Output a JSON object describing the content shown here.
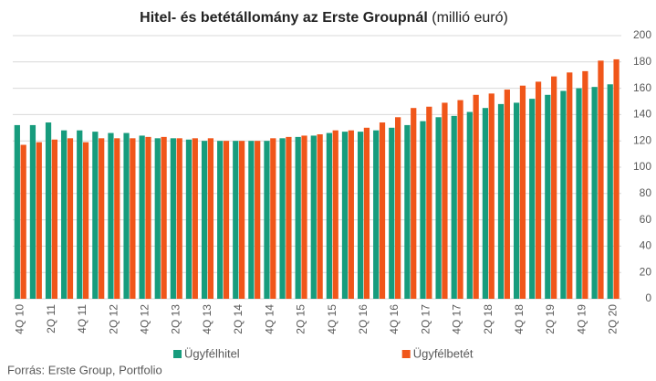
{
  "chart_data": {
    "type": "bar",
    "title": "Hitel- és betétállomány az Erste Groupnál",
    "title_unit": "(millió euró)",
    "source": "Forrás: Erste Group, Portfolio",
    "categories": [
      "4Q 10",
      null,
      "2Q 11",
      null,
      "4Q 11",
      null,
      "2Q 12",
      null,
      "4Q 12",
      null,
      "2Q 13",
      null,
      "4Q 13",
      null,
      "2Q 14",
      null,
      "4Q 14",
      null,
      "2Q 15",
      null,
      "4Q 15",
      null,
      "2Q 16",
      null,
      "4Q 16",
      null,
      "2Q 17",
      null,
      "4Q 17",
      null,
      "2Q 18",
      null,
      "4Q 18",
      null,
      "2Q 19",
      null,
      "4Q 19",
      null,
      "2Q 20"
    ],
    "series": [
      {
        "name": "Ügyfélhitel",
        "color": "#179c7d",
        "values": [
          132,
          132,
          134,
          128,
          128,
          127,
          126,
          126,
          124,
          122,
          122,
          121,
          120,
          120,
          120,
          120,
          120,
          122,
          123,
          124,
          126,
          127,
          127,
          128,
          130,
          132,
          135,
          138,
          139,
          142,
          145,
          148,
          149,
          152,
          155,
          158,
          160,
          161,
          163
        ]
      },
      {
        "name": "Ügyfélbetét",
        "color": "#f0561a",
        "values": [
          117,
          119,
          121,
          122,
          119,
          122,
          122,
          122,
          123,
          123,
          122,
          122,
          122,
          120,
          120,
          120,
          122,
          123,
          124,
          125,
          128,
          128,
          130,
          134,
          138,
          145,
          146,
          149,
          151,
          155,
          156,
          159,
          162,
          165,
          169,
          172,
          173,
          181,
          182
        ]
      }
    ],
    "ylim": [
      0,
      200
    ],
    "yticks": [
      0,
      20,
      40,
      60,
      80,
      100,
      120,
      140,
      160,
      180,
      200
    ],
    "grid": true
  }
}
